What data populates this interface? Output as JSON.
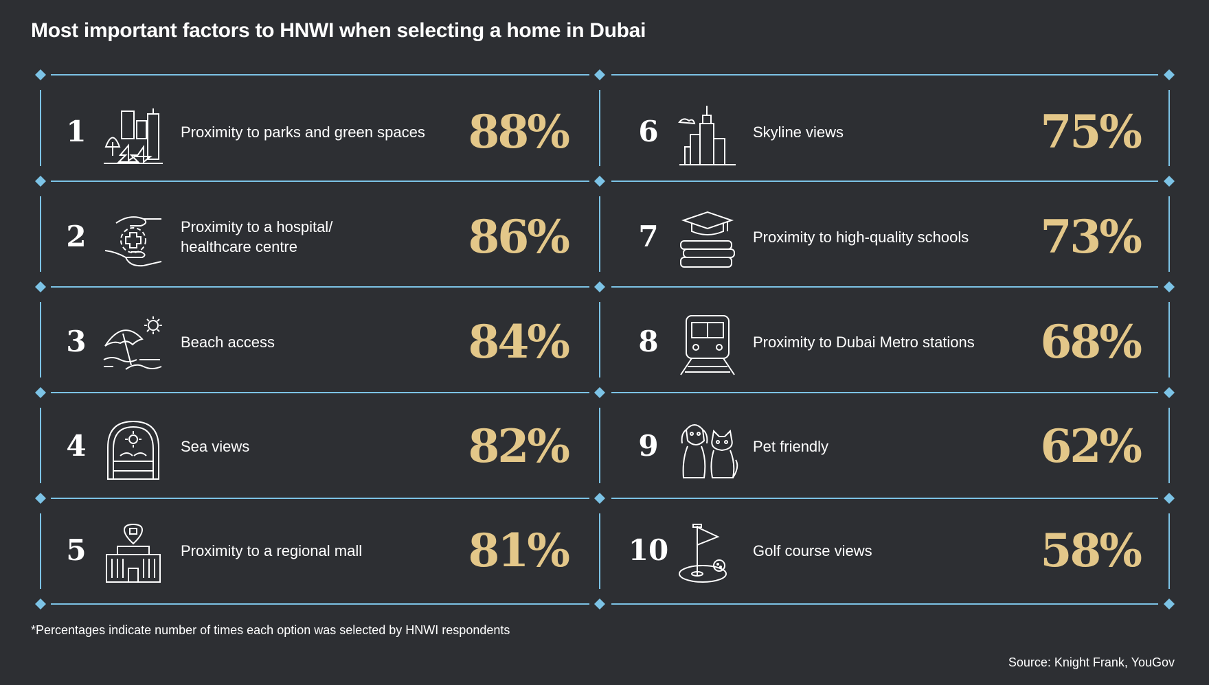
{
  "title": "Most important factors to HNWI when selecting a home in Dubai",
  "colors": {
    "background": "#2d2f33",
    "lines": "#7cc3e6",
    "percent": "#e3c789",
    "text": "#ffffff"
  },
  "factors": [
    {
      "rank": "1",
      "label": "Proximity to parks and green spaces",
      "percent": "88%",
      "icon": "city-trees-icon"
    },
    {
      "rank": "2",
      "label": "Proximity to a hospital/\nhealthcare centre",
      "percent": "86%",
      "icon": "hands-medical-cross-icon"
    },
    {
      "rank": "3",
      "label": "Beach access",
      "percent": "84%",
      "icon": "beach-umbrella-icon"
    },
    {
      "rank": "4",
      "label": "Sea views",
      "percent": "82%",
      "icon": "arched-window-sea-icon"
    },
    {
      "rank": "5",
      "label": "Proximity to a regional mall",
      "percent": "81%",
      "icon": "mall-building-icon"
    },
    {
      "rank": "6",
      "label": "Skyline views",
      "percent": "75%",
      "icon": "skyline-icon"
    },
    {
      "rank": "7",
      "label": "Proximity to high-quality schools",
      "percent": "73%",
      "icon": "graduation-books-icon"
    },
    {
      "rank": "8",
      "label": "Proximity to Dubai Metro stations",
      "percent": "68%",
      "icon": "metro-train-icon"
    },
    {
      "rank": "9",
      "label": "Pet friendly",
      "percent": "62%",
      "icon": "dog-cat-icon"
    },
    {
      "rank": "10",
      "label": "Golf course views",
      "percent": "58%",
      "icon": "golf-flag-icon"
    }
  ],
  "footnote": "*Percentages indicate number of times each option was selected by HNWI respondents",
  "source": "Source: Knight Frank, YouGov"
}
